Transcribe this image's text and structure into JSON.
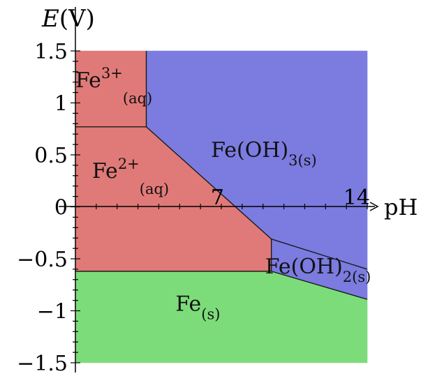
{
  "chart_data": {
    "type": "area",
    "xlabel": "pH",
    "ylabel_symbol": "E",
    "ylabel_unit": "(V)",
    "xlim": [
      0,
      14
    ],
    "ylim": [
      -1.5,
      1.5
    ],
    "x_tick_labels": [
      {
        "value": 7,
        "label": "7"
      },
      {
        "value": 14,
        "label": "14"
      }
    ],
    "y_ticks": [
      {
        "value": 1.5,
        "label": "1.5"
      },
      {
        "value": 1,
        "label": "1"
      },
      {
        "value": 0.5,
        "label": "0.5"
      },
      {
        "value": 0,
        "label": "0"
      },
      {
        "value": -0.5,
        "label": "−0.5"
      },
      {
        "value": -1,
        "label": "−1"
      },
      {
        "value": -1.5,
        "label": "−1.5"
      }
    ],
    "regions": [
      {
        "id": "fe3",
        "base": "Fe",
        "sup": "3+",
        "sub": "(aq)",
        "color": "#e07a78",
        "label_at": [
          0,
          1.15
        ],
        "polygon": [
          [
            0,
            1.5
          ],
          [
            3.4,
            1.5
          ],
          [
            3.4,
            0.77
          ],
          [
            0,
            0.77
          ]
        ]
      },
      {
        "id": "fe2",
        "base": "Fe",
        "sup": "2+",
        "sub": "(aq)",
        "color": "#e07a78",
        "label_at": [
          0.8,
          0.28
        ],
        "polygon": [
          [
            0,
            0.77
          ],
          [
            3.4,
            0.77
          ],
          [
            9.4,
            -0.31
          ],
          [
            9.4,
            -0.62
          ],
          [
            0,
            -0.62
          ]
        ]
      },
      {
        "id": "feoh3",
        "base": "Fe(OH)",
        "sup": "",
        "sub": "3(s)",
        "color": "#7b7be0",
        "label_at": [
          6.5,
          0.48
        ],
        "polygon": [
          [
            3.4,
            1.5
          ],
          [
            14,
            1.5
          ],
          [
            14,
            -0.6
          ],
          [
            9.4,
            -0.31
          ],
          [
            3.4,
            0.77
          ]
        ]
      },
      {
        "id": "feoh2",
        "base": "Fe(OH)",
        "sup": "",
        "sub": "2(s)",
        "color": "#7b7be0",
        "label_at": [
          9.1,
          -0.64
        ],
        "polygon": [
          [
            9.4,
            -0.31
          ],
          [
            14,
            -0.6
          ],
          [
            14,
            -0.89
          ],
          [
            9.4,
            -0.62
          ]
        ]
      },
      {
        "id": "fes",
        "base": "Fe",
        "sup": "",
        "sub": "(s)",
        "color": "#7ddc7a",
        "label_at": [
          4.8,
          -1.0
        ],
        "polygon": [
          [
            0,
            -0.62
          ],
          [
            9.4,
            -0.62
          ],
          [
            14,
            -0.89
          ],
          [
            14,
            -1.5
          ],
          [
            0,
            -1.5
          ]
        ]
      }
    ],
    "boundaries": [
      [
        [
          0,
          0.77
        ],
        [
          3.4,
          0.77
        ]
      ],
      [
        [
          3.4,
          1.5
        ],
        [
          3.4,
          0.77
        ]
      ],
      [
        [
          3.4,
          0.77
        ],
        [
          9.4,
          -0.31
        ]
      ],
      [
        [
          9.4,
          -0.31
        ],
        [
          9.4,
          -0.62
        ]
      ],
      [
        [
          9.4,
          -0.31
        ],
        [
          14,
          -0.6
        ]
      ],
      [
        [
          0,
          -0.62
        ],
        [
          9.4,
          -0.62
        ]
      ],
      [
        [
          9.4,
          -0.62
        ],
        [
          14,
          -0.89
        ]
      ]
    ]
  }
}
